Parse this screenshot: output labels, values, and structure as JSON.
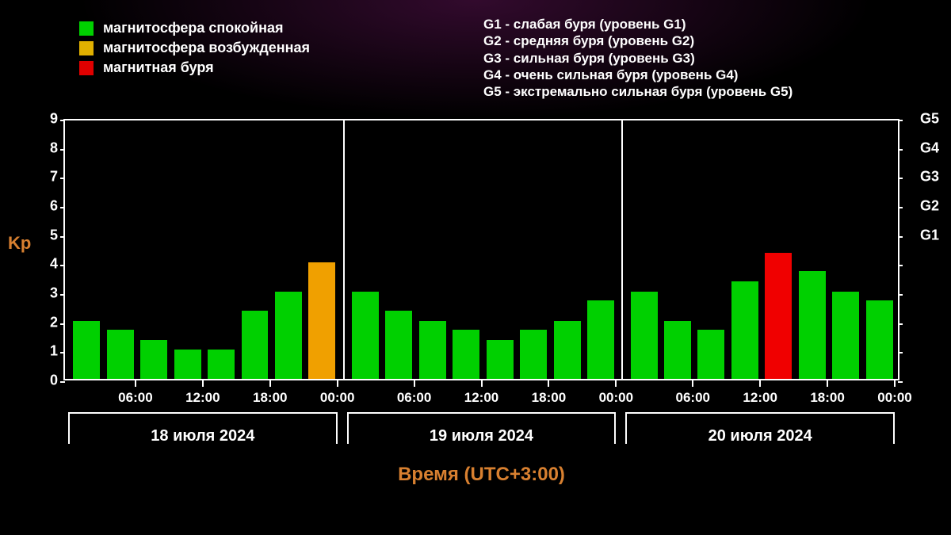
{
  "legend_left": {
    "items": [
      {
        "color": "#00d000",
        "label": "магнитосфера спокойная"
      },
      {
        "color": "#e0b000",
        "label": "магнитосфера возбужденная"
      },
      {
        "color": "#e00000",
        "label": "магнитная буря"
      }
    ],
    "fontsize": 18
  },
  "legend_right": {
    "lines": [
      "G1 - слабая буря (уровень G1)",
      "G2 - средняя буря (уровень G2)",
      "G3 - сильная буря (уровень G3)",
      "G4 - очень сильная буря (уровень G4)",
      "G5 - экстремально сильная буря (уровень G5)"
    ],
    "fontsize": 17
  },
  "chart": {
    "type": "bar",
    "background_color": "#000000",
    "axis_color": "#ffffff",
    "text_color": "#ffffff",
    "y_label": "Kp",
    "y_label_color": "#d88030",
    "ylim": [
      0,
      9
    ],
    "ytick_step": 1,
    "y2_ticks": [
      {
        "value": 5,
        "label": "G1"
      },
      {
        "value": 6,
        "label": "G2"
      },
      {
        "value": 7,
        "label": "G3"
      },
      {
        "value": 8,
        "label": "G4"
      },
      {
        "value": 9,
        "label": "G5"
      }
    ],
    "colors": {
      "calm": "#00d000",
      "active": "#f0a000",
      "storm": "#f00000"
    },
    "bar_width_rel": 0.8,
    "bar_gap_rel": 0.2,
    "days": [
      {
        "date_label": "18 июля 2024",
        "time_ticks": [
          "06:00",
          "12:00",
          "18:00",
          "00:00"
        ],
        "bars": [
          {
            "value": 2.0,
            "color": "calm"
          },
          {
            "value": 1.7,
            "color": "calm"
          },
          {
            "value": 1.35,
            "color": "calm"
          },
          {
            "value": 1.0,
            "color": "calm"
          },
          {
            "value": 1.0,
            "color": "calm"
          },
          {
            "value": 2.35,
            "color": "calm"
          },
          {
            "value": 3.0,
            "color": "calm"
          },
          {
            "value": 4.0,
            "color": "active"
          }
        ]
      },
      {
        "date_label": "19 июля 2024",
        "time_ticks": [
          "06:00",
          "12:00",
          "18:00",
          "00:00"
        ],
        "bars": [
          {
            "value": 3.0,
            "color": "calm"
          },
          {
            "value": 2.35,
            "color": "calm"
          },
          {
            "value": 2.0,
            "color": "calm"
          },
          {
            "value": 1.7,
            "color": "calm"
          },
          {
            "value": 1.35,
            "color": "calm"
          },
          {
            "value": 1.7,
            "color": "calm"
          },
          {
            "value": 2.0,
            "color": "calm"
          },
          {
            "value": 2.7,
            "color": "calm"
          }
        ]
      },
      {
        "date_label": "20 июля 2024",
        "time_ticks": [
          "06:00",
          "12:00",
          "18:00",
          "00:00"
        ],
        "bars": [
          {
            "value": 3.0,
            "color": "calm"
          },
          {
            "value": 2.0,
            "color": "calm"
          },
          {
            "value": 1.7,
            "color": "calm"
          },
          {
            "value": 3.35,
            "color": "calm"
          },
          {
            "value": 4.35,
            "color": "storm"
          },
          {
            "value": 3.7,
            "color": "calm"
          },
          {
            "value": 3.0,
            "color": "calm"
          },
          {
            "value": 2.7,
            "color": "calm"
          }
        ]
      }
    ],
    "x_title": "Время (UTC+3:00)",
    "x_title_color": "#d88030",
    "x_title_fontsize": 24
  }
}
